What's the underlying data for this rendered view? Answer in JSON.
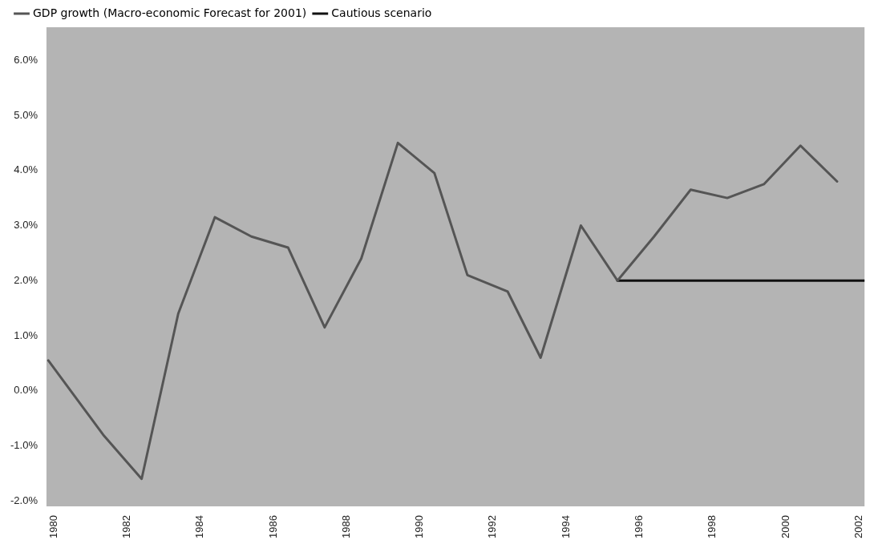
{
  "chart_data": {
    "type": "line",
    "legend": "top left",
    "grid": false,
    "marker": "none",
    "line_style": "solid",
    "xlim": [
      1979.8,
      2002.15
    ],
    "xticks": [
      1980,
      1982,
      1984,
      1986,
      1988,
      1990,
      1992,
      1994,
      1996,
      1998,
      2000,
      2002
    ],
    "ylim": [
      -2.1,
      6.6
    ],
    "yticks": [
      {
        "value": -2,
        "label": "-2.0%"
      },
      {
        "value": -1,
        "label": "-1.0%"
      },
      {
        "value": 0,
        "label": "0.0%"
      },
      {
        "value": 1,
        "label": "1.0%"
      },
      {
        "value": 2,
        "label": "2.0%"
      },
      {
        "value": 3,
        "label": "3.0%"
      },
      {
        "value": 4,
        "label": "4.0%"
      },
      {
        "value": 5,
        "label": "5.0%"
      },
      {
        "value": 6,
        "label": "6.0%"
      }
    ],
    "series": [
      {
        "name": "GDP growth (Macro-economic Forecast for 2001)",
        "color": "#555555",
        "x": [
          1979.85,
          1981.35,
          1982.4,
          1983.4,
          1984.4,
          1985.4,
          1986.4,
          1987.4,
          1988.4,
          1989.4,
          1990.4,
          1991.3,
          1992.4,
          1993.3,
          1994.4,
          1995.4,
          1996.4,
          1997.4,
          1998.4,
          1999.4,
          2000.4,
          2001.4
        ],
        "values": [
          0.55,
          -0.8,
          -1.6,
          1.4,
          3.15,
          2.8,
          2.6,
          1.15,
          2.4,
          4.5,
          3.95,
          2.1,
          1.8,
          0.6,
          3.0,
          2.0,
          2.8,
          3.65,
          3.5,
          3.75,
          4.45,
          3.8
        ]
      },
      {
        "name": "Cautious scenario",
        "color": "#111111",
        "x": [
          1995.4,
          2002.15
        ],
        "values": [
          2.0,
          2.0
        ]
      }
    ]
  }
}
